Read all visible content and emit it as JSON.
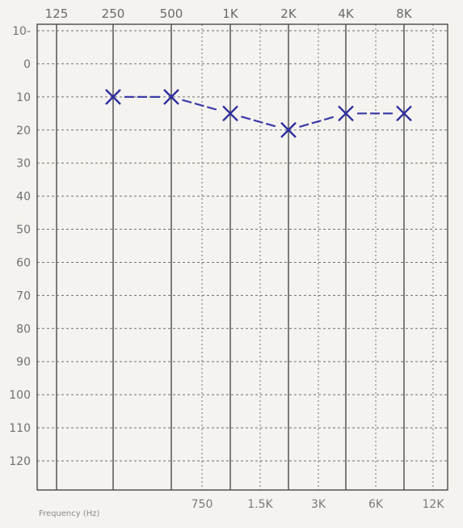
{
  "chart_data": {
    "type": "line",
    "xlabel": "Frequency (Hz)",
    "ylabel": "",
    "ylim": [
      -10,
      120
    ],
    "y_inverted": true,
    "grid": true,
    "x_ticks_top": [
      "125",
      "250",
      "500",
      "1K",
      "2K",
      "4K",
      "8K"
    ],
    "x_ticks_bottom": [
      "750",
      "1.5K",
      "3K",
      "6K",
      "12K"
    ],
    "y_ticks": [
      "10-",
      "0",
      "10",
      "20",
      "30",
      "40",
      "50",
      "60",
      "70",
      "80",
      "90",
      "100",
      "110",
      "120"
    ],
    "marker": "x",
    "color": "#3a3aa8",
    "series": [
      {
        "x": [
          "250",
          "500",
          "1K",
          "2K",
          "4K",
          "8K"
        ],
        "values": [
          10,
          10,
          15,
          20,
          15,
          15
        ]
      }
    ]
  }
}
